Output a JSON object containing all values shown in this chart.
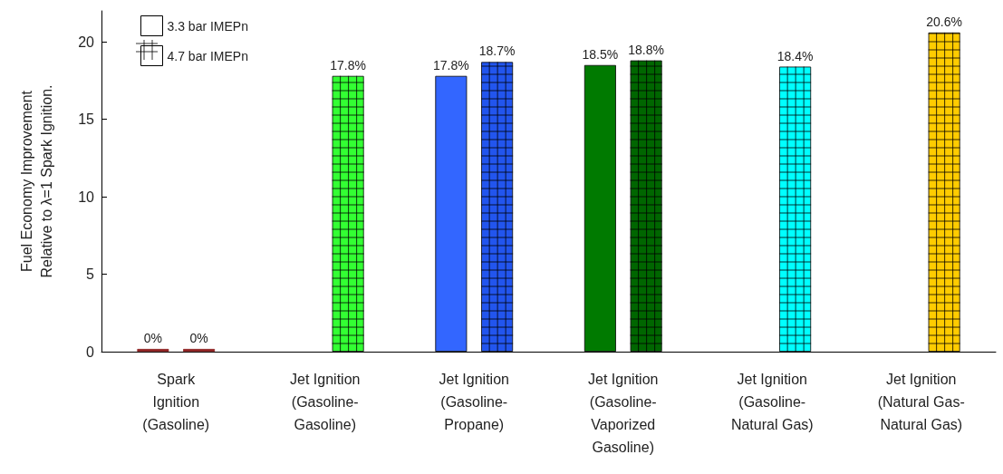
{
  "chart_data": {
    "type": "bar",
    "ylabel": "Fuel Economy Improvement\nRelative to λ=1 Spark Ignition.",
    "categories": [
      "Spark\nIgnition\n(Gasoline)",
      "Jet Ignition\n(Gasoline-\nGasoline)",
      "Jet Ignition\n(Gasoline-\nPropane)",
      "Jet Ignition\n(Gasoline-\nVaporized\nGasoline)",
      "Jet Ignition\n(Gasoline-\nNatural Gas)",
      "Jet Ignition\n(Natural Gas-\nNatural Gas)"
    ],
    "series": [
      {
        "name": "3.3 bar IMEPn",
        "colors": [
          "#8b1a1a",
          null,
          "#3366ff",
          "#007a00",
          null,
          null
        ],
        "values": [
          0,
          null,
          17.8,
          18.5,
          null,
          null
        ],
        "value_labels": [
          "0%",
          null,
          "17.8%",
          "18.5%",
          null,
          null
        ]
      },
      {
        "name": "4.7 bar IMEPn",
        "colors": [
          "#8b1a1a",
          "#33ff33",
          "#2255ee",
          "#006600",
          "#00ffff",
          "#ffcc00"
        ],
        "values": [
          0,
          17.8,
          18.7,
          18.8,
          18.4,
          20.6
        ],
        "value_labels": [
          "0%",
          "17.8%",
          "18.7%",
          "18.8%",
          "18.4%",
          "20.6%"
        ]
      }
    ],
    "ylim": [
      0,
      22
    ],
    "yticks": [
      0,
      5,
      10,
      15,
      20
    ],
    "grid": false,
    "legend": "top left"
  }
}
